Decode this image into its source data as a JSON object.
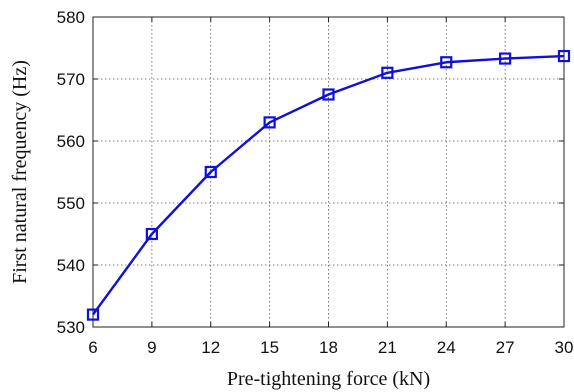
{
  "chart_data": {
    "type": "line",
    "title": "",
    "xlabel": "Pre-tightening force (kN)",
    "ylabel": "First natural frequency (Hz)",
    "xlim": [
      6,
      30
    ],
    "ylim": [
      530,
      580
    ],
    "xticks": [
      6,
      9,
      12,
      15,
      18,
      21,
      24,
      27,
      30
    ],
    "yticks": [
      530,
      540,
      550,
      560,
      570,
      580
    ],
    "grid": true,
    "series": [
      {
        "marker": "square",
        "color": "#1010d8",
        "x": [
          6,
          9,
          12,
          15,
          18,
          21,
          24,
          27,
          30
        ],
        "y": [
          532.0,
          545.0,
          555.0,
          563.0,
          567.5,
          571.0,
          572.7,
          573.3,
          573.7
        ]
      }
    ]
  }
}
